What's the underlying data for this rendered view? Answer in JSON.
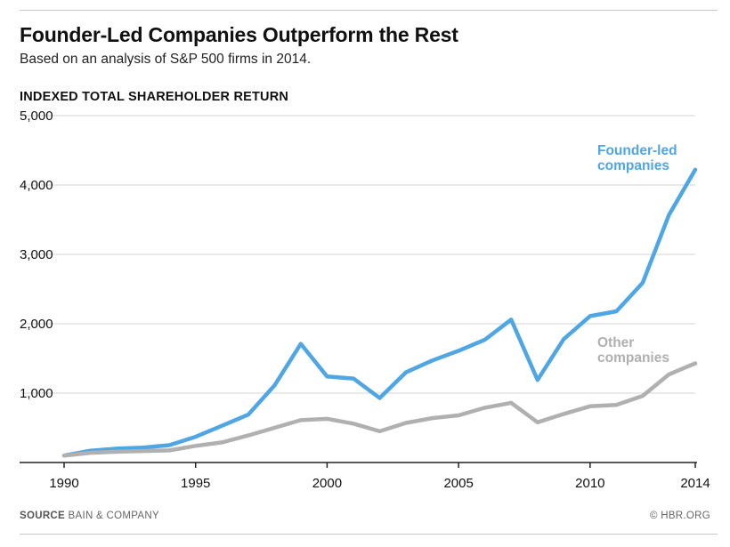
{
  "header": {
    "title": "Founder-Led Companies Outperform the Rest",
    "subtitle": "Based on an analysis of S&P 500 firms in 2014.",
    "axis_title": "INDEXED TOTAL SHAREHOLDER RETURN"
  },
  "footer": {
    "source_label": "SOURCE",
    "source_text": "BAIN & COMPANY",
    "credit": "© HBR.ORG"
  },
  "colors": {
    "founder": "#4fa6e4",
    "other": "#b0b0b0",
    "grid": "#d6d6d6",
    "axis": "#222222"
  },
  "chart_data": {
    "type": "line",
    "title": "Founder-Led Companies Outperform the Rest",
    "subtitle": "Based on an analysis of S&P 500 firms in 2014.",
    "xlabel": "",
    "ylabel": "INDEXED TOTAL SHAREHOLDER RETURN",
    "xlim": [
      1990,
      2014
    ],
    "ylim": [
      0,
      5000
    ],
    "x_ticks": [
      1990,
      1995,
      2000,
      2005,
      2010,
      2014
    ],
    "y_ticks": [
      1000,
      2000,
      3000,
      4000,
      5000
    ],
    "y_tick_labels": [
      "1,000",
      "2,000",
      "3,000",
      "4,000",
      "5,000"
    ],
    "grid": true,
    "x": [
      1990,
      1991,
      1992,
      1993,
      1994,
      1995,
      1996,
      1997,
      1998,
      1999,
      2000,
      2001,
      2002,
      2003,
      2004,
      2005,
      2006,
      2007,
      2008,
      2009,
      2010,
      2011,
      2012,
      2013,
      2014
    ],
    "series": [
      {
        "name": "Founder-led companies",
        "label_lines": [
          "Founder-led",
          "companies"
        ],
        "color": "#4fa6e4",
        "values": [
          100,
          170,
          200,
          215,
          250,
          370,
          530,
          690,
          1110,
          1710,
          1240,
          1210,
          930,
          1300,
          1470,
          1610,
          1770,
          2060,
          1190,
          1780,
          2110,
          2180,
          2590,
          3570,
          4220
        ]
      },
      {
        "name": "Other companies",
        "label_lines": [
          "Other",
          "companies"
        ],
        "color": "#b0b0b0",
        "values": [
          100,
          140,
          155,
          165,
          175,
          240,
          290,
          390,
          500,
          610,
          630,
          560,
          450,
          570,
          640,
          680,
          790,
          860,
          580,
          700,
          810,
          830,
          960,
          1270,
          1430
        ]
      }
    ]
  }
}
